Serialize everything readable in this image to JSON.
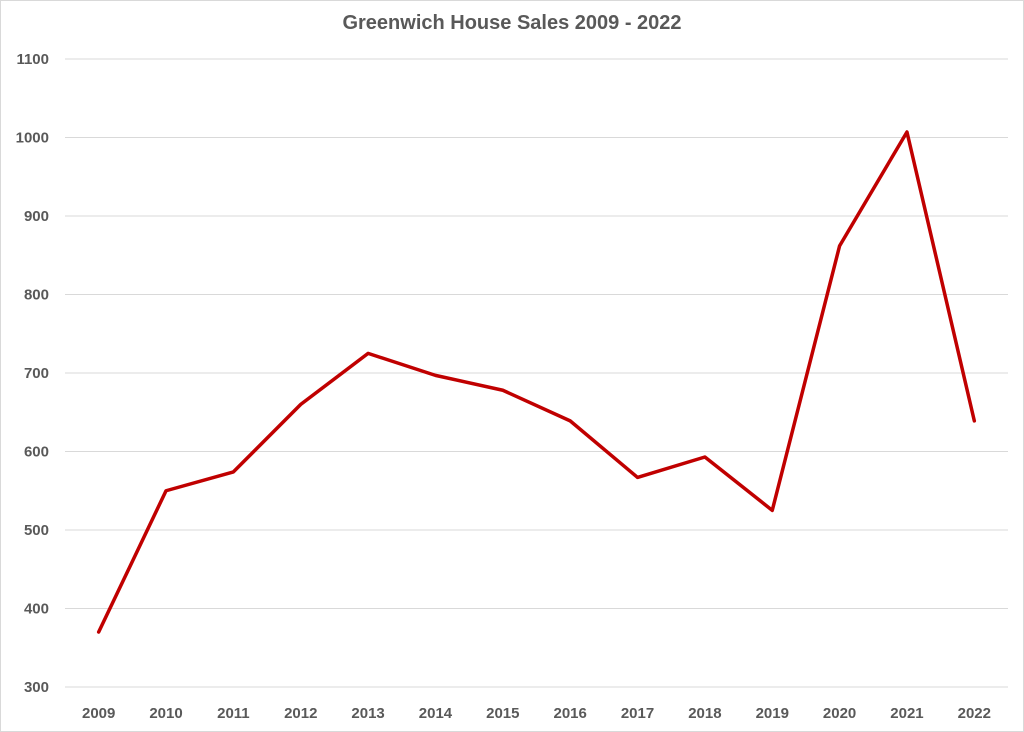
{
  "chart_data": {
    "type": "line",
    "title": "Greenwich House Sales 2009 - 2022",
    "xlabel": "",
    "ylabel": "",
    "categories": [
      "2009",
      "2010",
      "2011",
      "2012",
      "2013",
      "2014",
      "2015",
      "2016",
      "2017",
      "2018",
      "2019",
      "2020",
      "2021",
      "2022"
    ],
    "values": [
      370,
      550,
      574,
      660,
      725,
      697,
      678,
      639,
      567,
      593,
      525,
      862,
      1007,
      639
    ],
    "ylim": [
      300,
      1100
    ],
    "yticks": [
      300,
      400,
      500,
      600,
      700,
      800,
      900,
      1000,
      1100
    ],
    "grid": true,
    "legend": "none",
    "line_color": "#c00000"
  }
}
